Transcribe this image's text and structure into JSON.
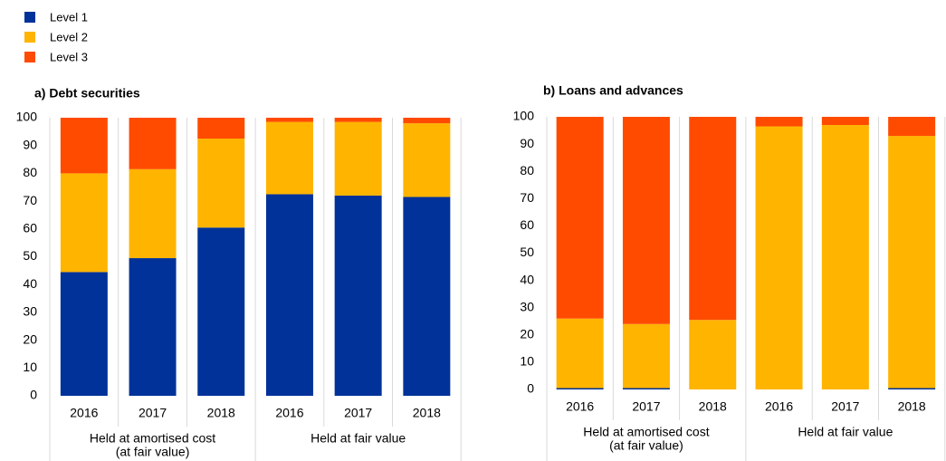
{
  "legend": [
    {
      "name": "Level 1",
      "color": "#003299"
    },
    {
      "name": "Level 2",
      "color": "#ffb400"
    },
    {
      "name": "Level 3",
      "color": "#ff4b00"
    }
  ],
  "chart_data": [
    {
      "type": "stacked-bar",
      "title": "a) Debt securities",
      "groups": [
        {
          "lines": [
            "Held at amortised cost",
            "(at fair value)"
          ],
          "categories": [
            "2016",
            "2017",
            "2018"
          ]
        },
        {
          "lines": [
            "Held at fair value"
          ],
          "categories": [
            "2016",
            "2017",
            "2018"
          ]
        }
      ],
      "series": [
        {
          "values": [
            44.5,
            49.5,
            60.5,
            72.5,
            72,
            71.5
          ]
        },
        {
          "values": [
            35.5,
            32,
            32,
            26,
            26.5,
            26.5
          ]
        },
        {
          "values": [
            20,
            18.5,
            7.5,
            1.5,
            1.5,
            2
          ]
        }
      ],
      "ylim": [
        0,
        100
      ],
      "yticks": [
        0,
        10,
        20,
        30,
        40,
        50,
        60,
        70,
        80,
        90,
        100
      ]
    },
    {
      "type": "stacked-bar",
      "title": "b) Loans and advances",
      "groups": [
        {
          "lines": [
            "Held at amortised cost",
            "(at fair value)"
          ],
          "categories": [
            "2016",
            "2017",
            "2018"
          ]
        },
        {
          "lines": [
            "Held at fair value"
          ],
          "categories": [
            "2016",
            "2017",
            "2018"
          ]
        }
      ],
      "series": [
        {
          "values": [
            0.5,
            0.5,
            0,
            0,
            0,
            0.5
          ]
        },
        {
          "values": [
            25.5,
            23.5,
            25.5,
            96.5,
            97,
            92.5
          ]
        },
        {
          "values": [
            74,
            76,
            74.5,
            3.5,
            3,
            7
          ]
        }
      ],
      "ylim": [
        0,
        100
      ],
      "yticks": [
        0,
        10,
        20,
        30,
        40,
        50,
        60,
        70,
        80,
        90,
        100
      ]
    }
  ]
}
